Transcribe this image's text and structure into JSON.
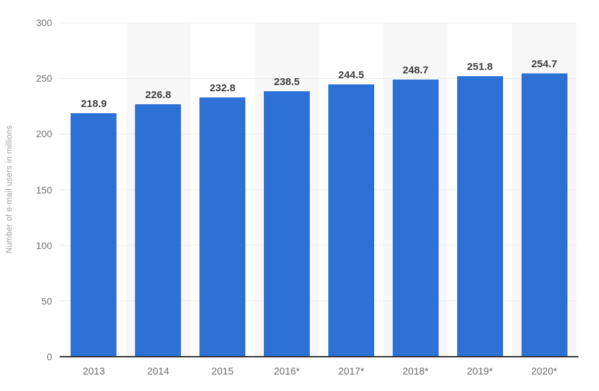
{
  "chart_data": {
    "type": "bar",
    "categories": [
      "2013",
      "2014",
      "2015",
      "2016*",
      "2017*",
      "2018*",
      "2019*",
      "2020*"
    ],
    "values": [
      218.9,
      226.8,
      232.8,
      238.5,
      244.5,
      248.7,
      251.8,
      254.7
    ],
    "value_labels": [
      "218.9",
      "226.8",
      "232.8",
      "238.5",
      "244.5",
      "248.7",
      "251.8",
      "254.7"
    ],
    "title": "",
    "xlabel": "",
    "ylabel": "Number of e-mail users in millions",
    "ylim": [
      0,
      300
    ],
    "yticks": [
      0,
      50,
      100,
      150,
      200,
      250,
      300
    ],
    "grid": true,
    "legend": "none",
    "band_columns": "alternating-even-years",
    "colors": {
      "bar": "#2e71d6",
      "column_band": "#f7f7f7",
      "gridline": "#ececec",
      "axis_line": "#333333",
      "tick_label": "#6e6e6e",
      "value_label": "#3d3d3d",
      "y_axis_title": "#9b9b9b",
      "background": "#ffffff"
    }
  }
}
